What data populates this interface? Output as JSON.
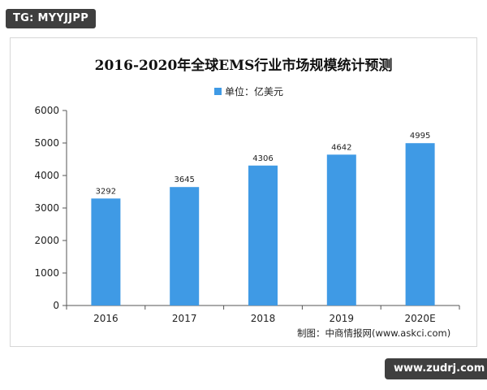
{
  "badges": {
    "top": "TG: MYYJJPP",
    "bottom": "www.zudrj.com"
  },
  "source_note": "制图：中商情报网(www.askci.com)",
  "colors": {
    "bar": "#3f9ae5",
    "axis": "#555555"
  },
  "chart_data": {
    "type": "bar",
    "title": "2016-2020年全球EMS行业市场规模统计预测",
    "legend_position": "top-center",
    "categories": [
      "2016",
      "2017",
      "2018",
      "2019",
      "2020E"
    ],
    "series": [
      {
        "name": "单位：亿美元",
        "values": [
          3292,
          3645,
          4306,
          4642,
          4995
        ]
      }
    ],
    "data_labels": [
      "3292",
      "3645",
      "4306",
      "4642",
      "4995"
    ],
    "y_ticks": [
      "0",
      "1000",
      "2000",
      "3000",
      "4000",
      "5000",
      "6000"
    ],
    "ylim": [
      0,
      6000
    ],
    "xlabel": "",
    "ylabel": "",
    "grid": false
  }
}
